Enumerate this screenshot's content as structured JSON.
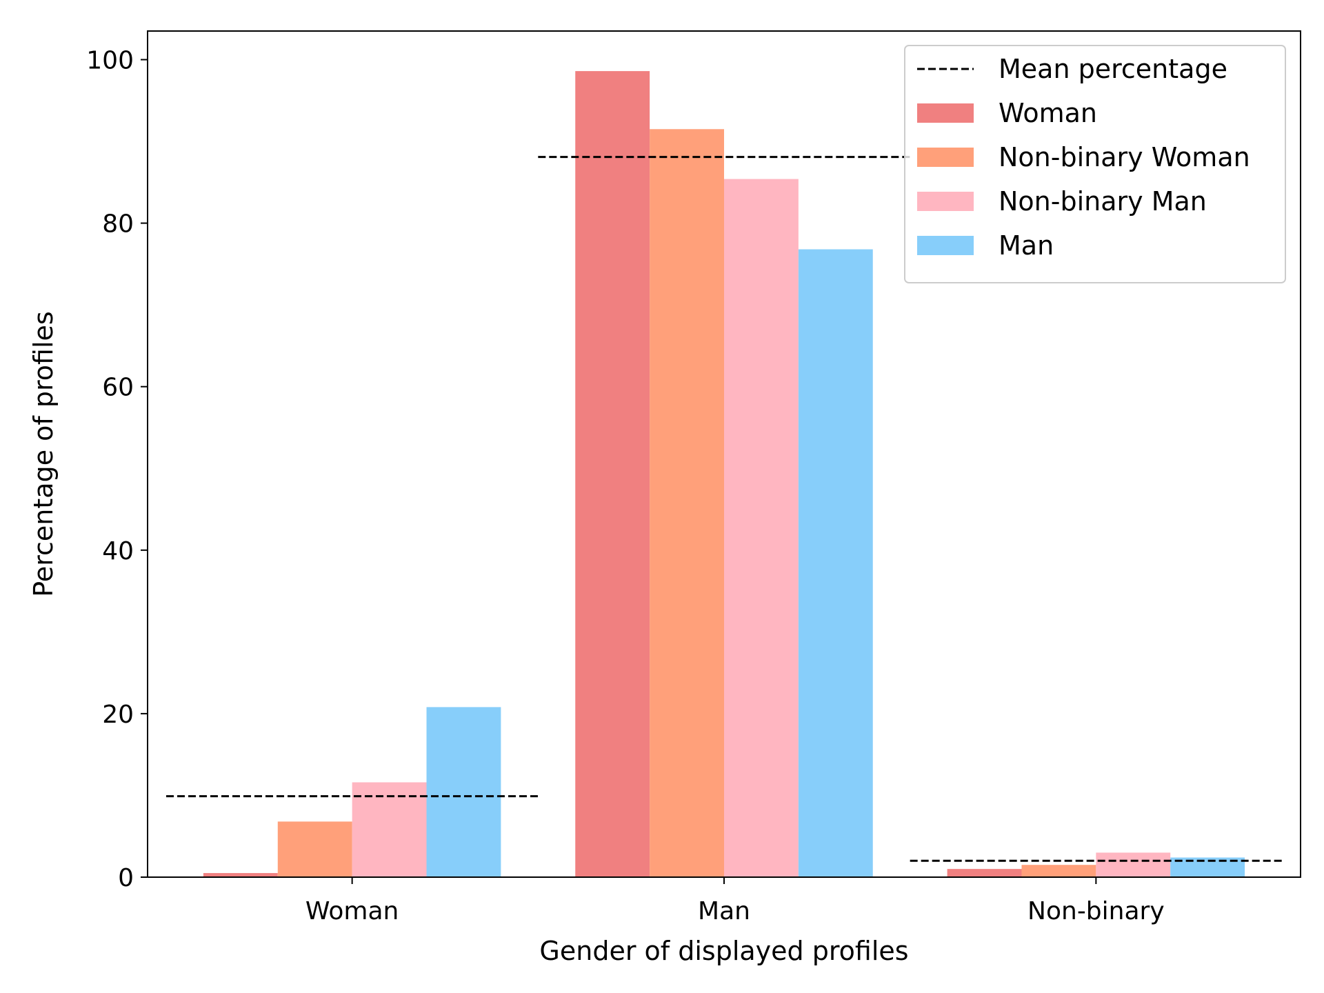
{
  "chart_data": {
    "type": "bar",
    "title": "",
    "xlabel": "Gender of displayed profiles",
    "ylabel": "Percentage of profiles",
    "categories": [
      "Woman",
      "Man",
      "Non-binary"
    ],
    "ylim": [
      0,
      103.5
    ],
    "yticks": [
      0,
      20,
      40,
      60,
      80,
      100
    ],
    "grid": false,
    "legend_position": "top-right",
    "series": [
      {
        "name": "Woman",
        "color": "#f08080",
        "values": [
          0.5,
          98.6,
          1.0
        ]
      },
      {
        "name": "Non-binary Woman",
        "color": "#ffa07a",
        "values": [
          6.8,
          91.5,
          1.5
        ]
      },
      {
        "name": "Non-binary Man",
        "color": "#ffb6c1",
        "values": [
          11.6,
          85.4,
          3.0
        ]
      },
      {
        "name": "Man",
        "color": "#87cefa",
        "values": [
          20.8,
          76.8,
          2.4
        ]
      }
    ],
    "mean_line": {
      "label": "Mean percentage",
      "color": "#000000",
      "style": "dashed",
      "values": [
        9.9,
        88.1,
        2.0
      ]
    }
  }
}
